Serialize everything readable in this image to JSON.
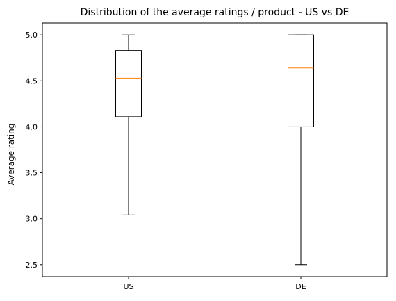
{
  "chart_data": {
    "type": "box",
    "title": "Distribution of the average ratings / product - US vs DE",
    "xlabel": "",
    "ylabel": "Average rating",
    "categories": [
      "US",
      "DE"
    ],
    "ylim": [
      2.37,
      5.13
    ],
    "yticks": [
      "2.5",
      "3.0",
      "3.5",
      "4.0",
      "4.5",
      "5.0"
    ],
    "boxes": [
      {
        "category": "US",
        "whisker_low": 3.04,
        "q1": 4.11,
        "median": 4.53,
        "q3": 4.83,
        "whisker_high": 5.0
      },
      {
        "category": "DE",
        "whisker_low": 2.5,
        "q1": 4.0,
        "median": 4.64,
        "q3": 5.0,
        "whisker_high": 5.0
      }
    ],
    "grid": false,
    "colors": {
      "box": "#000000",
      "median": "#ff7f0e"
    }
  }
}
